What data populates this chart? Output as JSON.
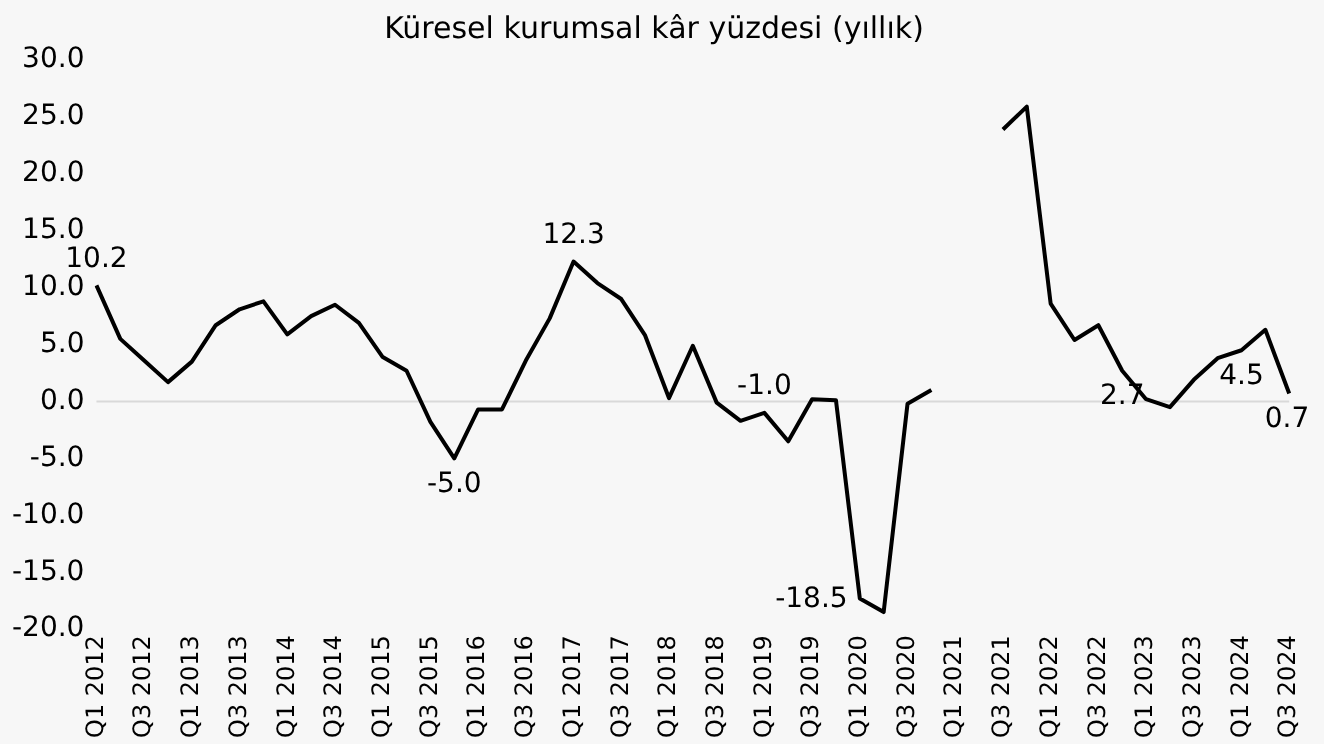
{
  "chart_data": {
    "type": "line",
    "title": "Küresel kurumsal kâr yüzdesi (yıllık)",
    "categories": [
      "Q1 2012",
      null,
      "Q3 2012",
      null,
      "Q1 2013",
      null,
      "Q3 2013",
      null,
      "Q1 2014",
      null,
      "Q3 2014",
      null,
      "Q1 2015",
      null,
      "Q3 2015",
      null,
      "Q1 2016",
      null,
      "Q3 2016",
      null,
      "Q1 2017",
      null,
      "Q3 2017",
      null,
      "Q1 2018",
      null,
      "Q3 2018",
      null,
      "Q1 2019",
      null,
      "Q3 2019",
      null,
      "Q1 2020",
      null,
      "Q3 2020",
      null,
      "Q1 2021",
      null,
      "Q3 2021",
      null,
      "Q1 2022",
      null,
      "Q3 2022",
      null,
      "Q1 2023",
      null,
      "Q3 2023",
      null,
      "Q1 2024",
      null,
      "Q3 2024"
    ],
    "series": [
      {
        "color": "#000000",
        "values": [
          10.2,
          5.5,
          3.6,
          1.7,
          3.5,
          6.7,
          8.1,
          8.8,
          5.9,
          7.5,
          8.5,
          6.9,
          3.9,
          2.7,
          -1.8,
          -5.0,
          -0.7,
          -0.7,
          3.6,
          7.3,
          12.3,
          10.4,
          9.0,
          5.8,
          0.3,
          4.9,
          -0.1,
          -1.7,
          -1.0,
          -3.5,
          0.2,
          0.1,
          -17.3,
          -18.5,
          -0.2,
          1.0,
          null,
          null,
          23.9,
          25.9,
          8.6,
          5.4,
          6.7,
          2.7,
          0.2,
          -0.5,
          1.9,
          3.8,
          4.5,
          6.3,
          0.7
        ],
        "value_labels": [
          "10.2",
          null,
          null,
          null,
          null,
          null,
          null,
          null,
          null,
          null,
          null,
          null,
          null,
          null,
          null,
          "-5.0",
          null,
          null,
          null,
          null,
          "12.3",
          null,
          null,
          null,
          null,
          null,
          null,
          null,
          "-1.0",
          null,
          null,
          null,
          null,
          "-18.5",
          null,
          null,
          null,
          null,
          null,
          null,
          null,
          null,
          null,
          "2.7",
          null,
          null,
          null,
          null,
          "4.5",
          null,
          "0.7"
        ]
      }
    ],
    "ylim": [
      -20,
      30
    ],
    "yticks": [
      {
        "value": -20,
        "label": "-20.0"
      },
      {
        "value": -15,
        "label": "-15.0"
      },
      {
        "value": -10,
        "label": "-10.0"
      },
      {
        "value": -5,
        "label": "-5.0"
      },
      {
        "value": 0,
        "label": "0.0"
      },
      {
        "value": 5,
        "label": "5.0"
      },
      {
        "value": 10,
        "label": "10.0"
      },
      {
        "value": 15,
        "label": "15.0"
      },
      {
        "value": 20,
        "label": "20.0"
      },
      {
        "value": 25,
        "label": "25.0"
      },
      {
        "value": 30,
        "label": "30.0"
      }
    ],
    "ref_lines": [
      {
        "axis": "y",
        "value": 0,
        "color": "#d9d9d9"
      }
    ],
    "grid": false,
    "legend": false,
    "marker": "none",
    "line_style": "solid"
  }
}
